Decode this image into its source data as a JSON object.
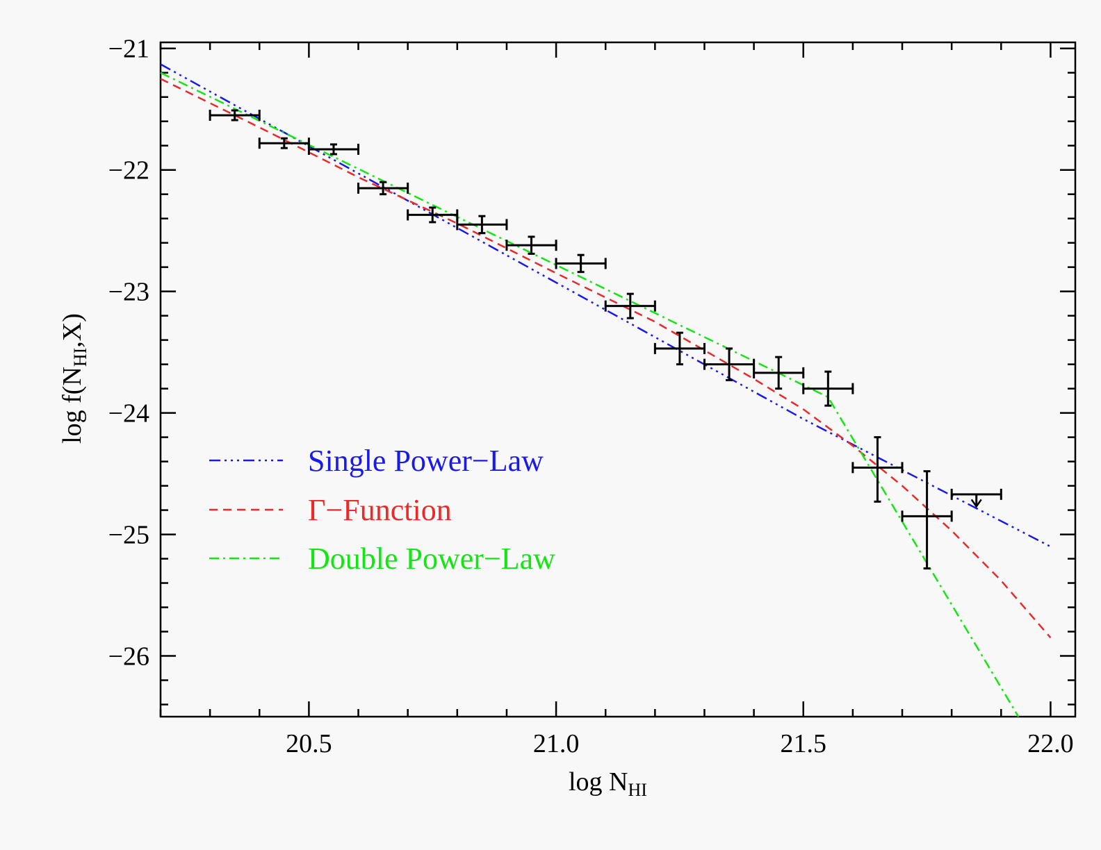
{
  "chart_data": {
    "type": "scatter",
    "xlabel": "log N",
    "xlabel_sub": "HI",
    "ylabel_pre": "log f(N",
    "ylabel_sub": "HI",
    "ylabel_post": ",X)",
    "xlim": [
      20.2,
      22.05
    ],
    "ylim": [
      -26.5,
      -20.95
    ],
    "xticks": [
      20.5,
      21.0,
      21.5,
      22.0
    ],
    "xtick_labels": [
      "20.5",
      "21.0",
      "21.5",
      "22.0"
    ],
    "xminor_step": 0.1,
    "yticks": [
      -21,
      -22,
      -23,
      -24,
      -25,
      -26
    ],
    "ytick_labels": [
      "−21",
      "−22",
      "−23",
      "−24",
      "−25",
      "−26"
    ],
    "yminor_step": 0.2,
    "grid": false,
    "legend_position": "lower-left",
    "points": [
      {
        "x": 20.35,
        "y": -21.55,
        "xerr": 0.05,
        "yerr_lo": 0.04,
        "yerr_hi": 0.04
      },
      {
        "x": 20.45,
        "y": -21.78,
        "xerr": 0.05,
        "yerr_lo": 0.04,
        "yerr_hi": 0.04
      },
      {
        "x": 20.55,
        "y": -21.83,
        "xerr": 0.05,
        "yerr_lo": 0.04,
        "yerr_hi": 0.04
      },
      {
        "x": 20.65,
        "y": -22.15,
        "xerr": 0.05,
        "yerr_lo": 0.05,
        "yerr_hi": 0.05
      },
      {
        "x": 20.75,
        "y": -22.37,
        "xerr": 0.05,
        "yerr_lo": 0.06,
        "yerr_hi": 0.06
      },
      {
        "x": 20.85,
        "y": -22.45,
        "xerr": 0.05,
        "yerr_lo": 0.07,
        "yerr_hi": 0.07
      },
      {
        "x": 20.95,
        "y": -22.62,
        "xerr": 0.05,
        "yerr_lo": 0.07,
        "yerr_hi": 0.07
      },
      {
        "x": 21.05,
        "y": -22.77,
        "xerr": 0.05,
        "yerr_lo": 0.07,
        "yerr_hi": 0.07
      },
      {
        "x": 21.15,
        "y": -23.12,
        "xerr": 0.05,
        "yerr_lo": 0.1,
        "yerr_hi": 0.1
      },
      {
        "x": 21.25,
        "y": -23.47,
        "xerr": 0.05,
        "yerr_lo": 0.13,
        "yerr_hi": 0.13
      },
      {
        "x": 21.35,
        "y": -23.6,
        "xerr": 0.05,
        "yerr_lo": 0.13,
        "yerr_hi": 0.13
      },
      {
        "x": 21.45,
        "y": -23.67,
        "xerr": 0.05,
        "yerr_lo": 0.13,
        "yerr_hi": 0.13
      },
      {
        "x": 21.55,
        "y": -23.8,
        "xerr": 0.05,
        "yerr_lo": 0.14,
        "yerr_hi": 0.14
      },
      {
        "x": 21.65,
        "y": -24.45,
        "xerr": 0.05,
        "yerr_lo": 0.28,
        "yerr_hi": 0.25
      },
      {
        "x": 21.75,
        "y": -24.85,
        "xerr": 0.05,
        "yerr_lo": 0.43,
        "yerr_hi": 0.37
      }
    ],
    "upper_limits": [
      {
        "x": 21.85,
        "y": -24.67,
        "xerr": 0.05,
        "arrow_to": -24.77
      }
    ],
    "series": [
      {
        "name": "Single Power−Law",
        "color": "#1a1ae6",
        "dash": "dash-dot-dot-dot",
        "x": [
          20.2,
          21.5,
          22.0
        ],
        "y": [
          -21.13,
          -24.05,
          -25.1
        ]
      },
      {
        "name": "Γ−Function",
        "color": "#e82a2a",
        "dash": "dashed",
        "x": [
          20.2,
          20.4,
          20.6,
          20.8,
          21.0,
          21.2,
          21.4,
          21.5,
          21.6,
          21.7,
          21.8,
          21.9,
          22.0
        ],
        "y": [
          -21.25,
          -21.65,
          -22.06,
          -22.44,
          -22.85,
          -23.25,
          -23.72,
          -23.97,
          -24.27,
          -24.6,
          -24.97,
          -25.38,
          -25.85
        ]
      },
      {
        "name": "Double Power−Law",
        "color": "#14e614",
        "dash": "dash-dot",
        "x": [
          20.2,
          21.55,
          21.935
        ],
        "y": [
          -21.2,
          -23.87,
          -26.5
        ]
      }
    ]
  }
}
